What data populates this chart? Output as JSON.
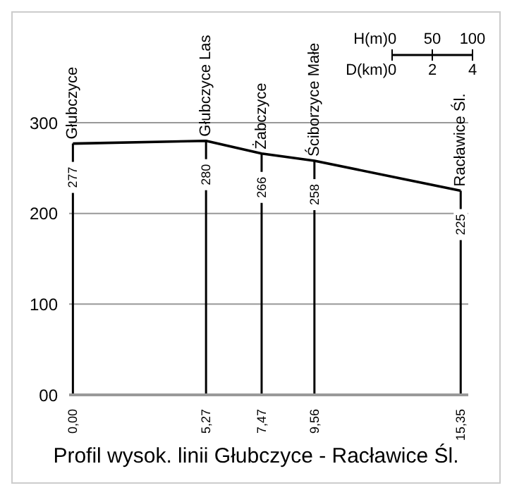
{
  "chart_data": {
    "type": "line",
    "title": "Profil wysok. linii Głubczyce - Racławice Śl.",
    "x": [
      0,
      5.27,
      7.47,
      9.56,
      15.35
    ],
    "series": [
      {
        "color": "#000000",
        "values": [
          277,
          280,
          266,
          258,
          225
        ],
        "value_labels": [
          "277",
          "280",
          "266",
          "258",
          "225"
        ]
      }
    ],
    "xlim": [
      -0.15,
      15.65
    ],
    "xticks": [
      {
        "value": 0,
        "label": "0,00"
      },
      {
        "value": 5.27,
        "label": "5,27"
      },
      {
        "value": 7.47,
        "label": "7,47"
      },
      {
        "value": 9.56,
        "label": "9,56"
      },
      {
        "value": 15.35,
        "label": "15,35"
      }
    ],
    "ylim": [
      0,
      300
    ],
    "yticks": [
      {
        "value": 0,
        "label": "00"
      },
      100,
      200,
      300
    ],
    "grid": "y",
    "marker": "none",
    "line_style": "solid",
    "ref_lines": [
      {
        "axis": "x",
        "value": 0,
        "label": "Głubczyce"
      },
      {
        "axis": "x",
        "value": 5.27,
        "label": "Głubczyce Las"
      },
      {
        "axis": "x",
        "value": 7.47,
        "label": "Żabczyce"
      },
      {
        "axis": "x",
        "value": 9.56,
        "label": "Ściborzyce Małe"
      },
      {
        "axis": "x",
        "value": 15.35,
        "label": "Racławice Śl."
      }
    ],
    "annotations": [
      "H(m)",
      "0",
      "50",
      "100",
      "D(km)",
      "0",
      "2",
      "4"
    ]
  }
}
